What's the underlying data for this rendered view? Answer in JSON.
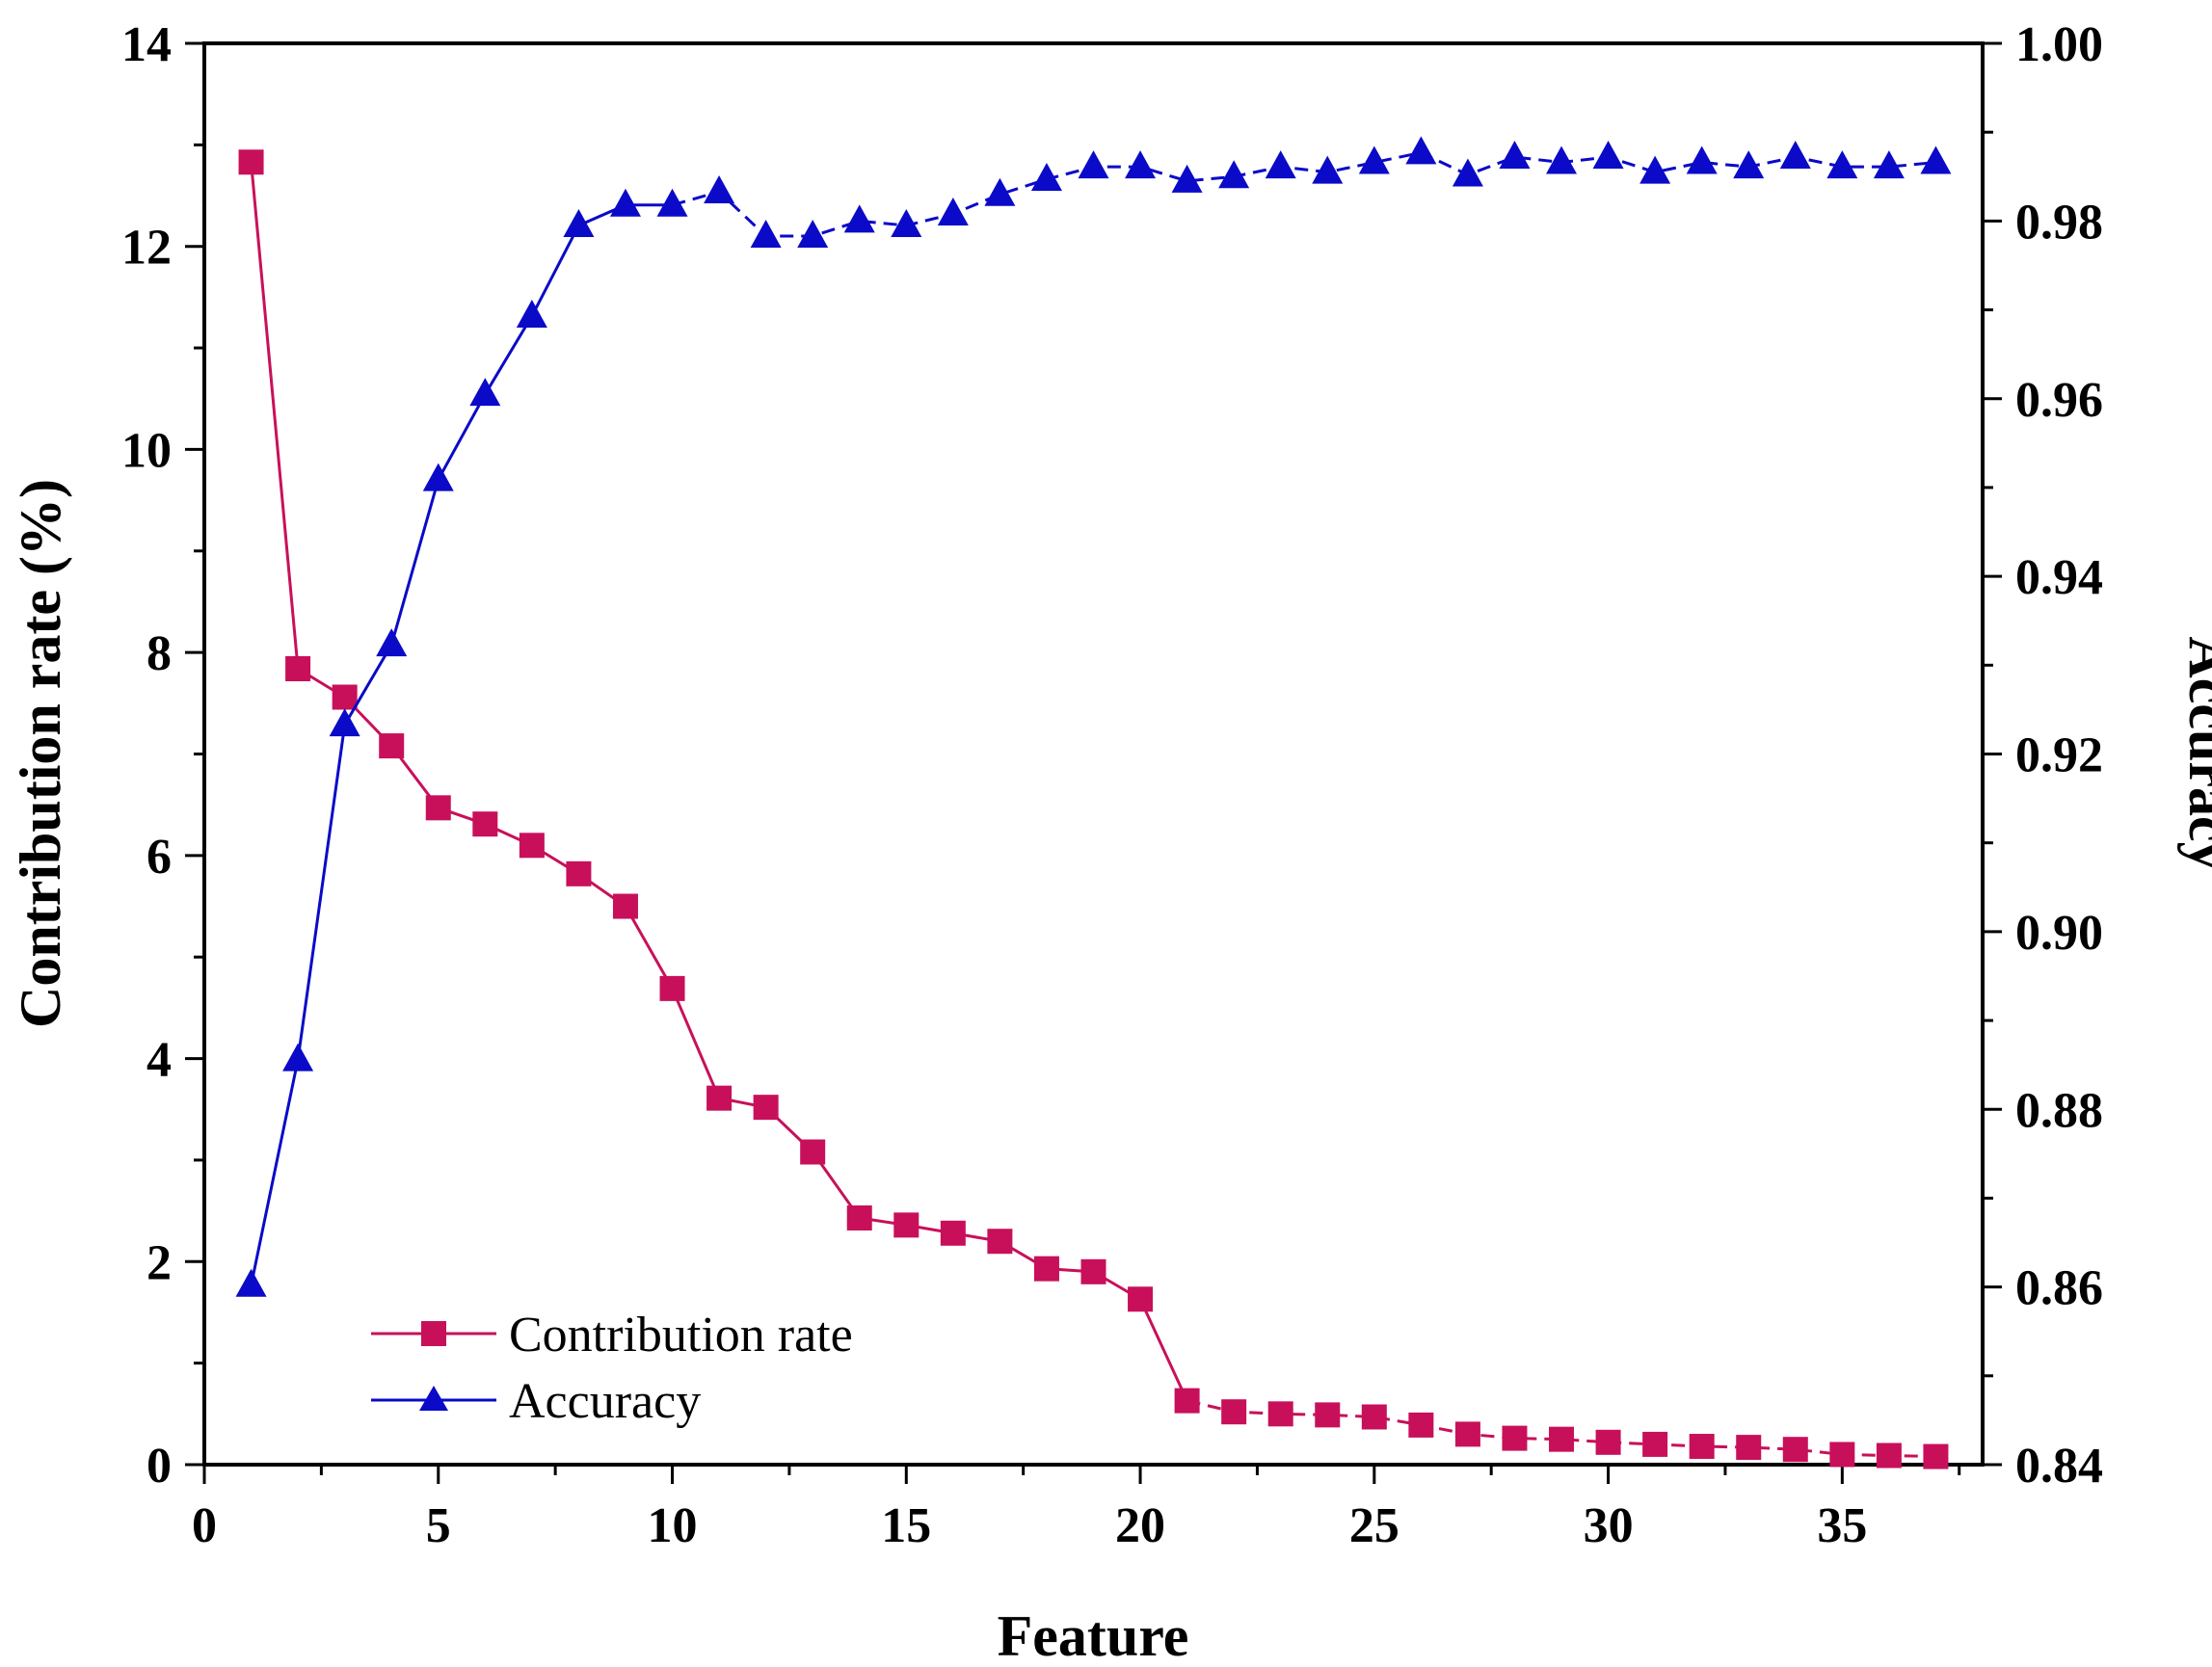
{
  "chart_data": {
    "type": "line",
    "title": "",
    "xlabel": "Feature",
    "ylabel_left": "Contribution rate (%)",
    "ylabel_right": "Accuracy",
    "xlim": [
      0,
      38
    ],
    "ylim_left": [
      0,
      14
    ],
    "ylim_right": [
      0.84,
      1.0
    ],
    "x_ticks": [
      0,
      5,
      10,
      15,
      20,
      25,
      30,
      35
    ],
    "x_tick_labels": [
      "0",
      "5",
      "10",
      "15",
      "20",
      "25",
      "30",
      "35"
    ],
    "y_left_ticks": [
      0,
      2,
      4,
      6,
      8,
      10,
      12,
      14
    ],
    "y_left_tick_labels": [
      "0",
      "2",
      "4",
      "6",
      "8",
      "10",
      "12",
      "14"
    ],
    "y_right_ticks": [
      0.84,
      0.86,
      0.88,
      0.9,
      0.92,
      0.94,
      0.96,
      0.98,
      1.0
    ],
    "y_right_tick_labels": [
      "0.84",
      "0.86",
      "0.88",
      "0.90",
      "0.92",
      "0.94",
      "0.96",
      "0.98",
      "1.00"
    ],
    "legend_position": "bottom-left",
    "x": [
      1,
      2,
      3,
      4,
      5,
      6,
      7,
      8,
      9,
      10,
      11,
      12,
      13,
      14,
      15,
      16,
      17,
      18,
      19,
      20,
      21,
      22,
      23,
      24,
      25,
      26,
      27,
      28,
      29,
      30,
      31,
      32,
      33,
      34,
      35,
      36,
      37
    ],
    "series": [
      {
        "name": "Contribution rate",
        "axis": "left",
        "marker": "square",
        "color": "#c8105a",
        "values": [
          12.83,
          7.84,
          7.56,
          7.08,
          6.47,
          6.31,
          6.1,
          5.82,
          5.5,
          4.69,
          3.61,
          3.52,
          3.08,
          2.43,
          2.36,
          2.28,
          2.2,
          1.93,
          1.9,
          1.63,
          0.63,
          0.52,
          0.5,
          0.49,
          0.47,
          0.39,
          0.3,
          0.26,
          0.25,
          0.22,
          0.2,
          0.18,
          0.17,
          0.15,
          0.1,
          0.09,
          0.08
        ]
      },
      {
        "name": "Accuracy",
        "axis": "right",
        "marker": "triangle",
        "color": "#0a0ac8",
        "values": [
          0.8602,
          0.8856,
          0.9233,
          0.9323,
          0.9509,
          0.9605,
          0.9693,
          0.9795,
          0.9818,
          0.9818,
          0.9833,
          0.9783,
          0.9783,
          0.98,
          0.9795,
          0.9808,
          0.983,
          0.9847,
          0.9861,
          0.9861,
          0.9845,
          0.985,
          0.9861,
          0.9855,
          0.9866,
          0.9877,
          0.9852,
          0.9872,
          0.9866,
          0.9872,
          0.9855,
          0.9866,
          0.9861,
          0.9872,
          0.9861,
          0.9861,
          0.9866
        ]
      }
    ]
  }
}
